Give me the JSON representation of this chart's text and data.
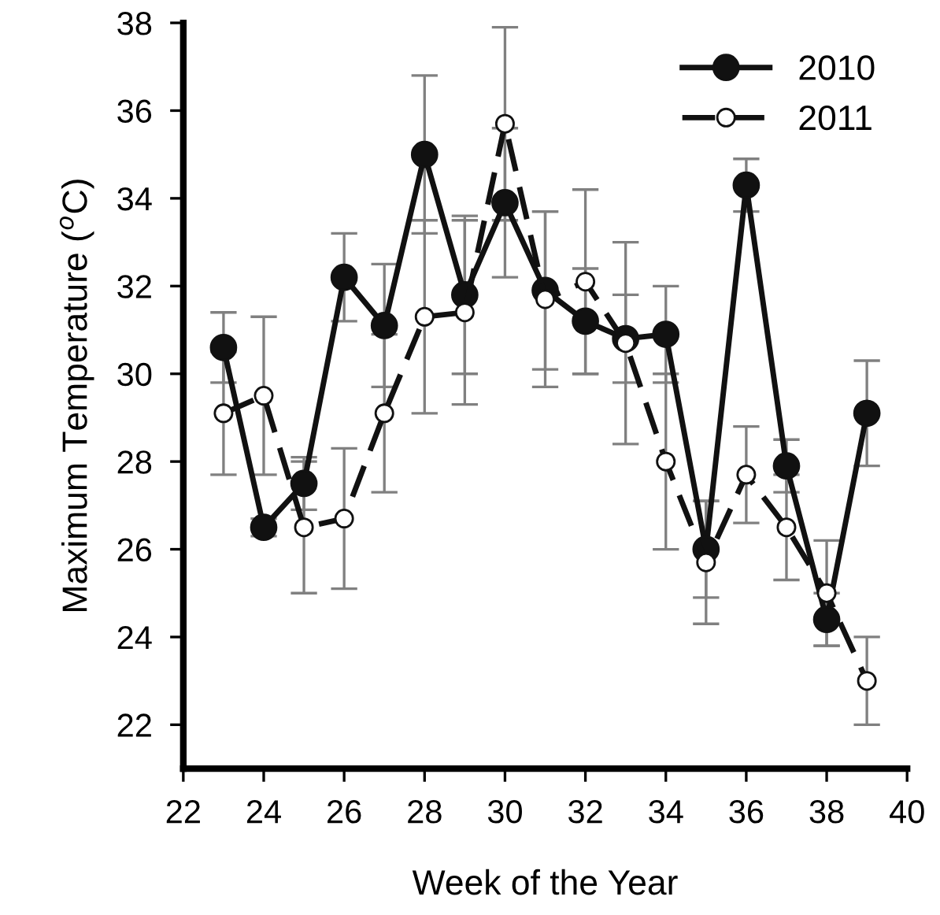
{
  "chart_data": {
    "type": "line",
    "xlabel": "Week of the Year",
    "ylabel": "Maximum Temperature ($^{o}$C)",
    "x": [
      23,
      24,
      25,
      26,
      27,
      28,
      29,
      30,
      31,
      32,
      33,
      34,
      35,
      36,
      37,
      38,
      39
    ],
    "series": [
      {
        "name": "2010",
        "color": "#111111",
        "marker": "circle",
        "line_style": "solid",
        "values": [
          30.6,
          26.5,
          27.5,
          32.2,
          31.1,
          35.0,
          31.8,
          33.9,
          31.9,
          31.2,
          30.8,
          30.9,
          26.0,
          34.3,
          27.9,
          24.4,
          29.1
        ],
        "errors": [
          0.8,
          0.2,
          0.6,
          1.0,
          1.4,
          1.8,
          1.8,
          1.7,
          1.8,
          1.2,
          1.0,
          1.1,
          1.1,
          0.6,
          0.6,
          0.6,
          1.2
        ]
      },
      {
        "name": "2011",
        "color": "#ffffff",
        "marker": "circle",
        "line_style": "dashed",
        "values": [
          29.1,
          29.5,
          26.5,
          26.7,
          29.1,
          31.3,
          31.4,
          35.7,
          31.7,
          32.1,
          30.7,
          28.0,
          25.7,
          27.7,
          26.5,
          25.0,
          23.0
        ],
        "errors": [
          1.4,
          1.8,
          1.5,
          1.6,
          1.8,
          2.2,
          2.1,
          2.2,
          2.0,
          2.1,
          2.3,
          2.0,
          1.4,
          1.1,
          1.2,
          1.2,
          1.0
        ]
      }
    ],
    "xlim": [
      22,
      40
    ],
    "xticks": [
      22,
      24,
      26,
      28,
      30,
      32,
      34,
      36,
      38,
      40
    ],
    "ylim": [
      21,
      38
    ],
    "yticks": [
      22,
      24,
      26,
      28,
      30,
      32,
      34,
      36,
      38
    ],
    "grid": false,
    "legend": "top right"
  }
}
